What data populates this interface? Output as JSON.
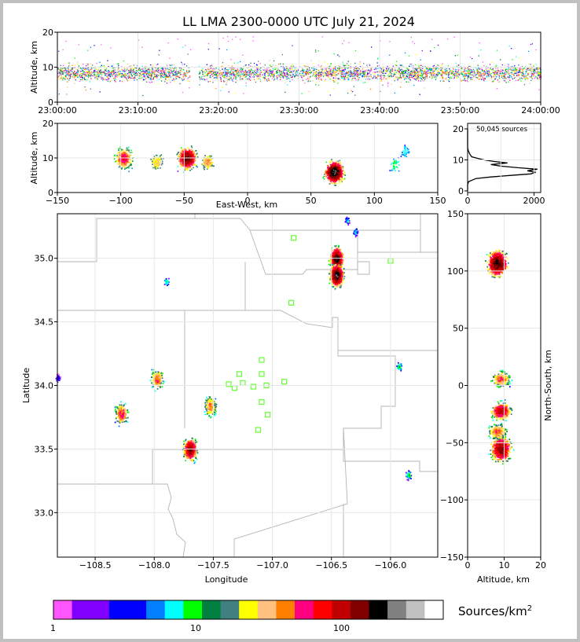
{
  "title": "LL LMA 2300-0000 UTC July 21, 2024",
  "chart_data": [
    {
      "panel": "altitude-time",
      "type": "scatter",
      "ylabel": "Altitude, km",
      "ylim": [
        0,
        20
      ],
      "yticks": [
        "0",
        "10",
        "20"
      ],
      "xticks": [
        "23:00:00",
        "23:10:00",
        "23:20:00",
        "23:30:00",
        "23:40:00",
        "23:50:00",
        "24:00:00"
      ],
      "xlim": [
        "23:00:00",
        "24:00:00"
      ],
      "data_gaps": [
        [
          "23:16:30",
          "23:17:30"
        ]
      ],
      "typical_altitude_band_km": [
        5,
        12
      ]
    },
    {
      "panel": "east-west-altitude",
      "type": "heatmap",
      "xlabel": "East-West, km",
      "ylabel": "Altitude, km",
      "xlim": [
        -150,
        150
      ],
      "ylim": [
        0,
        20
      ],
      "xticks": [
        "−150",
        "−100",
        "−50",
        "0",
        "50",
        "100",
        "150"
      ],
      "yticks": [
        "0",
        "10",
        "20"
      ],
      "clusters": [
        {
          "x_km": -98,
          "alt_km": 10,
          "peak": 60
        },
        {
          "x_km": -72,
          "alt_km": 9,
          "peak": 25
        },
        {
          "x_km": -48,
          "alt_km": 10,
          "peak": 140
        },
        {
          "x_km": -32,
          "alt_km": 9,
          "peak": 30
        },
        {
          "x_km": 68,
          "alt_km": 6,
          "peak": 200
        },
        {
          "x_km": 116,
          "alt_km": 8,
          "peak": 6
        },
        {
          "x_km": 124,
          "alt_km": 12,
          "peak": 4
        }
      ]
    },
    {
      "panel": "altitude-histogram",
      "type": "line",
      "annotation": "50,045 sources",
      "xlim": [
        0,
        2200
      ],
      "ylim": [
        0,
        21
      ],
      "xticks": [
        "0",
        "2000"
      ],
      "yticks": [
        "0",
        "10",
        "20"
      ],
      "points": [
        [
          0,
          0
        ],
        [
          0,
          2
        ],
        [
          30,
          3
        ],
        [
          250,
          4
        ],
        [
          700,
          4.5
        ],
        [
          1300,
          5
        ],
        [
          1900,
          5.5
        ],
        [
          2050,
          6
        ],
        [
          1800,
          6.5
        ],
        [
          2100,
          7
        ],
        [
          1500,
          7.5
        ],
        [
          1000,
          8
        ],
        [
          700,
          8.5
        ],
        [
          1200,
          9
        ],
        [
          800,
          9.5
        ],
        [
          500,
          10
        ],
        [
          300,
          10.5
        ],
        [
          120,
          11
        ],
        [
          60,
          12
        ],
        [
          20,
          13
        ],
        [
          0,
          14
        ],
        [
          0,
          20
        ]
      ]
    },
    {
      "panel": "plan-view",
      "type": "heatmap",
      "xlabel": "Longitude",
      "ylabel": "Latitude",
      "xlim": [
        -108.82,
        -105.6
      ],
      "ylim": [
        32.65,
        35.35
      ],
      "xticks": [
        "−108.5",
        "−108.0",
        "−107.5",
        "−107.0",
        "−106.5",
        "−106.0"
      ],
      "yticks": [
        "33.0",
        "33.5",
        "34.0",
        "34.5",
        "35.0"
      ],
      "stations": [
        [
          -106.82,
          35.16
        ],
        [
          -106.0,
          34.98
        ],
        [
          -106.84,
          34.65
        ],
        [
          -107.09,
          34.2
        ],
        [
          -107.28,
          34.09
        ],
        [
          -107.09,
          34.09
        ],
        [
          -107.37,
          34.01
        ],
        [
          -107.25,
          34.02
        ],
        [
          -107.32,
          33.98
        ],
        [
          -107.16,
          33.99
        ],
        [
          -107.05,
          34.0
        ],
        [
          -106.9,
          34.03
        ],
        [
          -107.09,
          33.87
        ],
        [
          -107.04,
          33.77
        ],
        [
          -107.12,
          33.65
        ]
      ],
      "clusters": [
        {
          "lon": -106.46,
          "lat": 35.0,
          "peak": 160
        },
        {
          "lon": -106.46,
          "lat": 34.87,
          "peak": 180
        },
        {
          "lon": -106.3,
          "lat": 35.21,
          "peak": 4
        },
        {
          "lon": -106.37,
          "lat": 35.3,
          "peak": 3
        },
        {
          "lon": -107.9,
          "lat": 34.82,
          "peak": 6
        },
        {
          "lon": -107.98,
          "lat": 34.05,
          "peak": 40
        },
        {
          "lon": -108.28,
          "lat": 33.78,
          "peak": 50
        },
        {
          "lon": -107.7,
          "lat": 33.5,
          "peak": 120
        },
        {
          "lon": -107.53,
          "lat": 33.84,
          "peak": 35
        },
        {
          "lon": -105.93,
          "lat": 34.15,
          "peak": 8
        },
        {
          "lon": -105.85,
          "lat": 33.3,
          "peak": 8
        },
        {
          "lon": -108.82,
          "lat": 34.06,
          "peak": 2
        }
      ]
    },
    {
      "panel": "altitude-north-south",
      "type": "heatmap",
      "xlabel": "Altitude, km",
      "ylabel": "North-South, km",
      "xlim": [
        0,
        20
      ],
      "ylim": [
        -150,
        150
      ],
      "xticks": [
        "0",
        "10",
        "20"
      ],
      "yticks": [
        "−150",
        "−100",
        "−50",
        "0",
        "50",
        "100",
        "150"
      ],
      "clusters": [
        {
          "alt_km": 8,
          "ns_km": 107,
          "peak": 160
        },
        {
          "alt_km": 9,
          "ns_km": 6,
          "peak": 40
        },
        {
          "alt_km": 9,
          "ns_km": -22,
          "peak": 90
        },
        {
          "alt_km": 9,
          "ns_km": -55,
          "peak": 120
        },
        {
          "alt_km": 8,
          "ns_km": -40,
          "peak": 40
        }
      ]
    }
  ],
  "colorbar": {
    "label": "Sources/km",
    "label_superscript": "2",
    "tick_labels": [
      "1",
      "10",
      "100"
    ],
    "colors": [
      "#ff55ff",
      "#8000ff",
      "#0000ff",
      "#0080ff",
      "#00ffff",
      "#00ff00",
      "#008040",
      "#408080",
      "#ffff00",
      "#ffc080",
      "#ff8000",
      "#ff0080",
      "#ff0000",
      "#c00000",
      "#800000",
      "#000000",
      "#808080",
      "#c0c0c0",
      "#ffffff"
    ],
    "widths": [
      1,
      2,
      2,
      1,
      1,
      1,
      1,
      1,
      1,
      1,
      1,
      1,
      1,
      1,
      1,
      1,
      1,
      1,
      1
    ]
  }
}
